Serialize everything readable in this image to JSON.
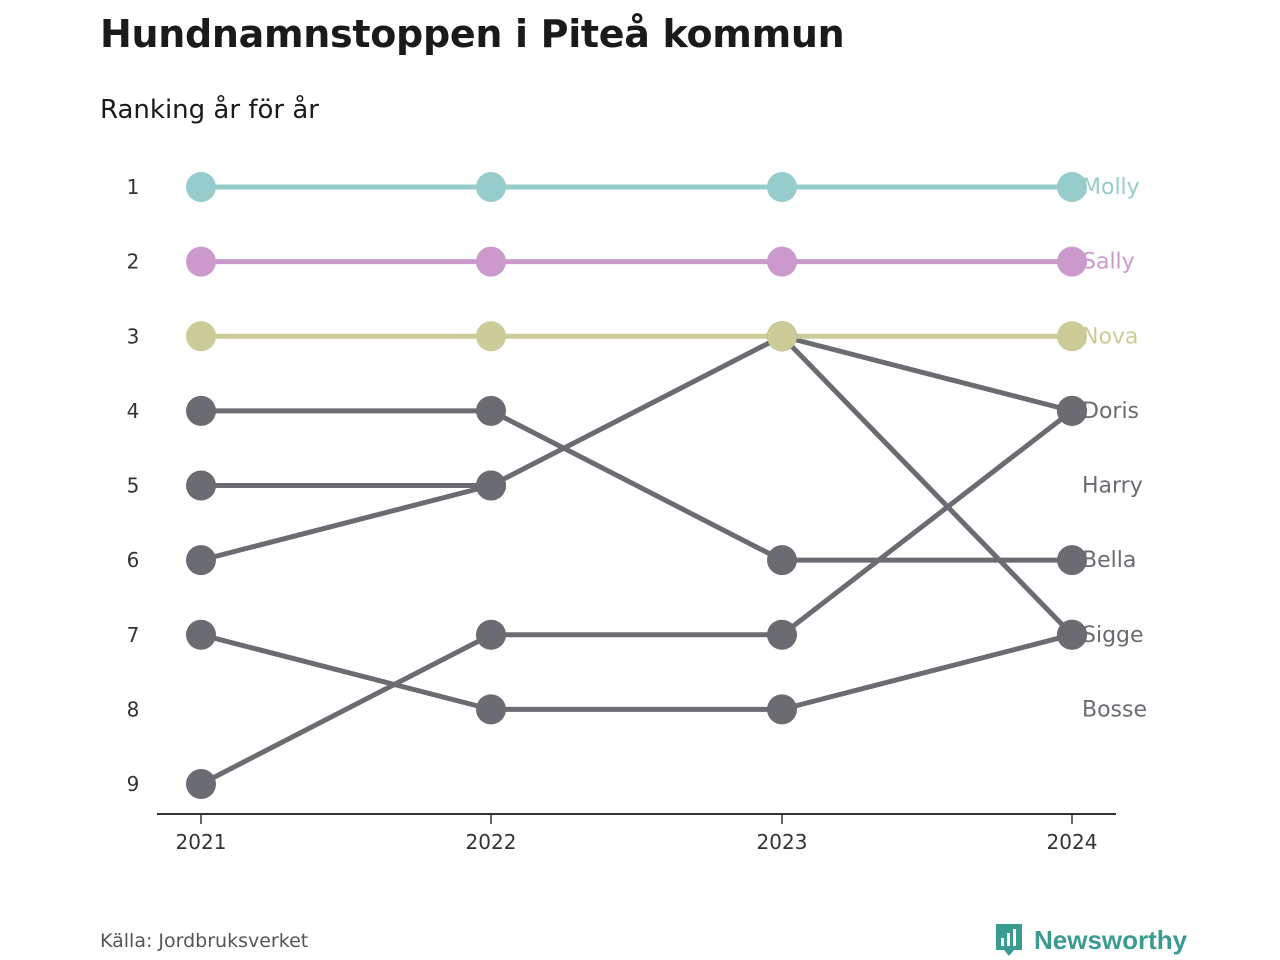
{
  "title": "Hundnamnstoppen i Piteå kommun",
  "subtitle": "Ranking år för år",
  "source": "Källa: Jordbruksverket",
  "brand": {
    "name": "Newsworthy",
    "color": "#3a9c90"
  },
  "chart_data": {
    "type": "line",
    "x": [
      "2021",
      "2022",
      "2023",
      "2024"
    ],
    "y_ticks": [
      1,
      2,
      3,
      4,
      5,
      6,
      7,
      8,
      9
    ],
    "ylim": [
      1,
      9
    ],
    "y_inverted": true,
    "grid": false,
    "series": [
      {
        "name": "Molly",
        "color": "#96cccb",
        "ranks": [
          1,
          1,
          1,
          1
        ]
      },
      {
        "name": "Sally",
        "color": "#cc99cc",
        "ranks": [
          2,
          2,
          2,
          2
        ]
      },
      {
        "name": "Nova",
        "color": "#cccc99",
        "ranks": [
          3,
          3,
          3,
          3
        ]
      },
      {
        "name": "Doris",
        "color": "#6b6b72",
        "ranks": [
          9,
          7,
          7,
          4
        ]
      },
      {
        "name": "Harry",
        "color": "#6b6b72",
        "ranks": [
          5,
          5,
          null,
          null
        ]
      },
      {
        "name": "Bella",
        "color": "#6b6b72",
        "ranks": [
          4,
          4,
          6,
          6
        ]
      },
      {
        "name": "Sigge",
        "color": "#6b6b72",
        "ranks": [
          6,
          5,
          3,
          7
        ]
      },
      {
        "name": "Bosse",
        "color": "#6b6b72",
        "ranks": [
          7,
          8,
          8,
          7
        ]
      },
      {
        "name": "",
        "color": "#6b6b72",
        "ranks": [
          null,
          null,
          3,
          4
        ]
      }
    ]
  }
}
